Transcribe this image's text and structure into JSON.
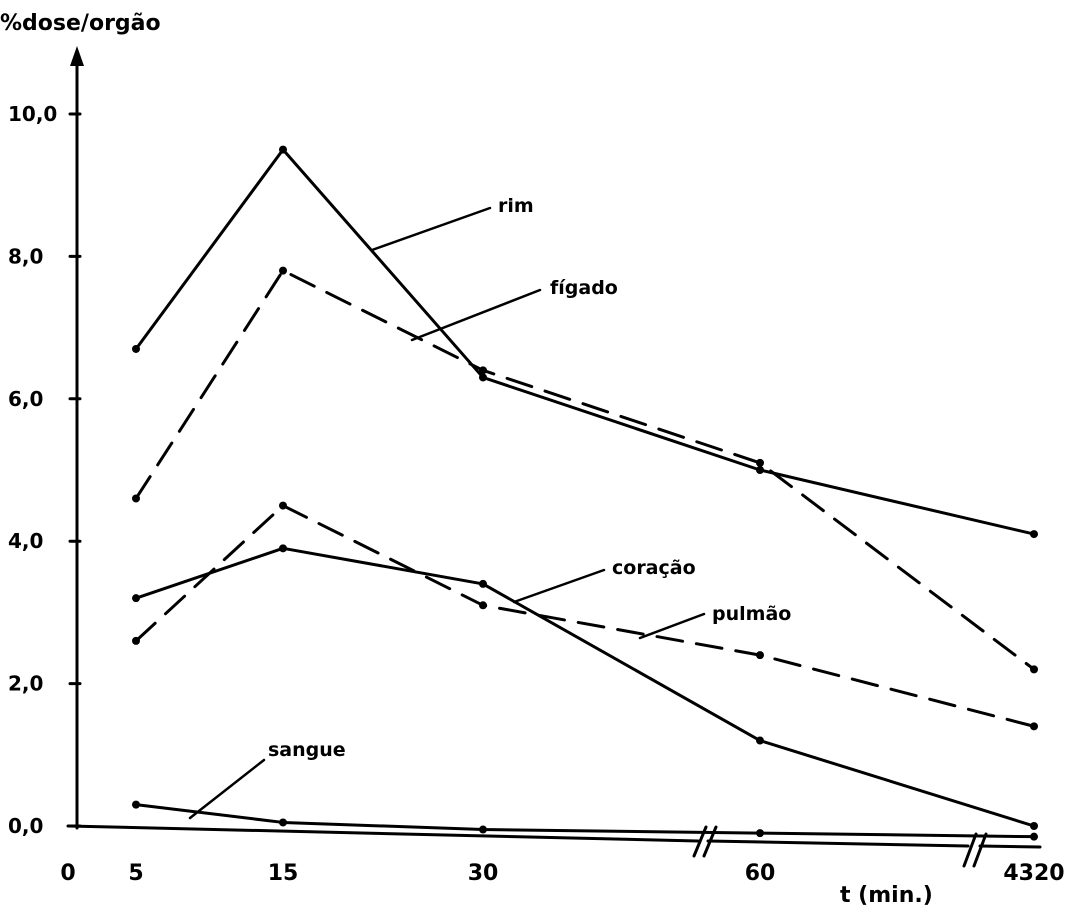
{
  "chart_data": {
    "type": "line",
    "ylabel": "%dose/orgão",
    "xlabel": "t (min.)",
    "x_ticks": [
      "0",
      "5",
      "15",
      "30",
      "60",
      "4320"
    ],
    "y_ticks": [
      "0,0",
      "2,0",
      "4,0",
      "6,0",
      "8,0",
      "10,0"
    ],
    "x": [
      5,
      15,
      30,
      60,
      4320
    ],
    "ylim": [
      0,
      10
    ],
    "axis_breaks": [
      "between 30 and 60",
      "between 60 and 4320"
    ],
    "series": [
      {
        "name": "rim",
        "style": "solid",
        "values": [
          6.7,
          9.5,
          6.3,
          5.0,
          4.1
        ]
      },
      {
        "name": "fígado",
        "style": "dashed",
        "values": [
          4.6,
          7.8,
          6.4,
          5.1,
          2.2
        ]
      },
      {
        "name": "coração",
        "style": "solid",
        "values": [
          3.2,
          3.9,
          3.4,
          1.2,
          0.0
        ]
      },
      {
        "name": "pulmão",
        "style": "dashed",
        "values": [
          2.6,
          4.5,
          3.1,
          2.4,
          1.4
        ]
      },
      {
        "name": "sangue",
        "style": "solid",
        "values": [
          0.3,
          0.05,
          -0.05,
          -0.1,
          -0.15
        ]
      }
    ]
  }
}
